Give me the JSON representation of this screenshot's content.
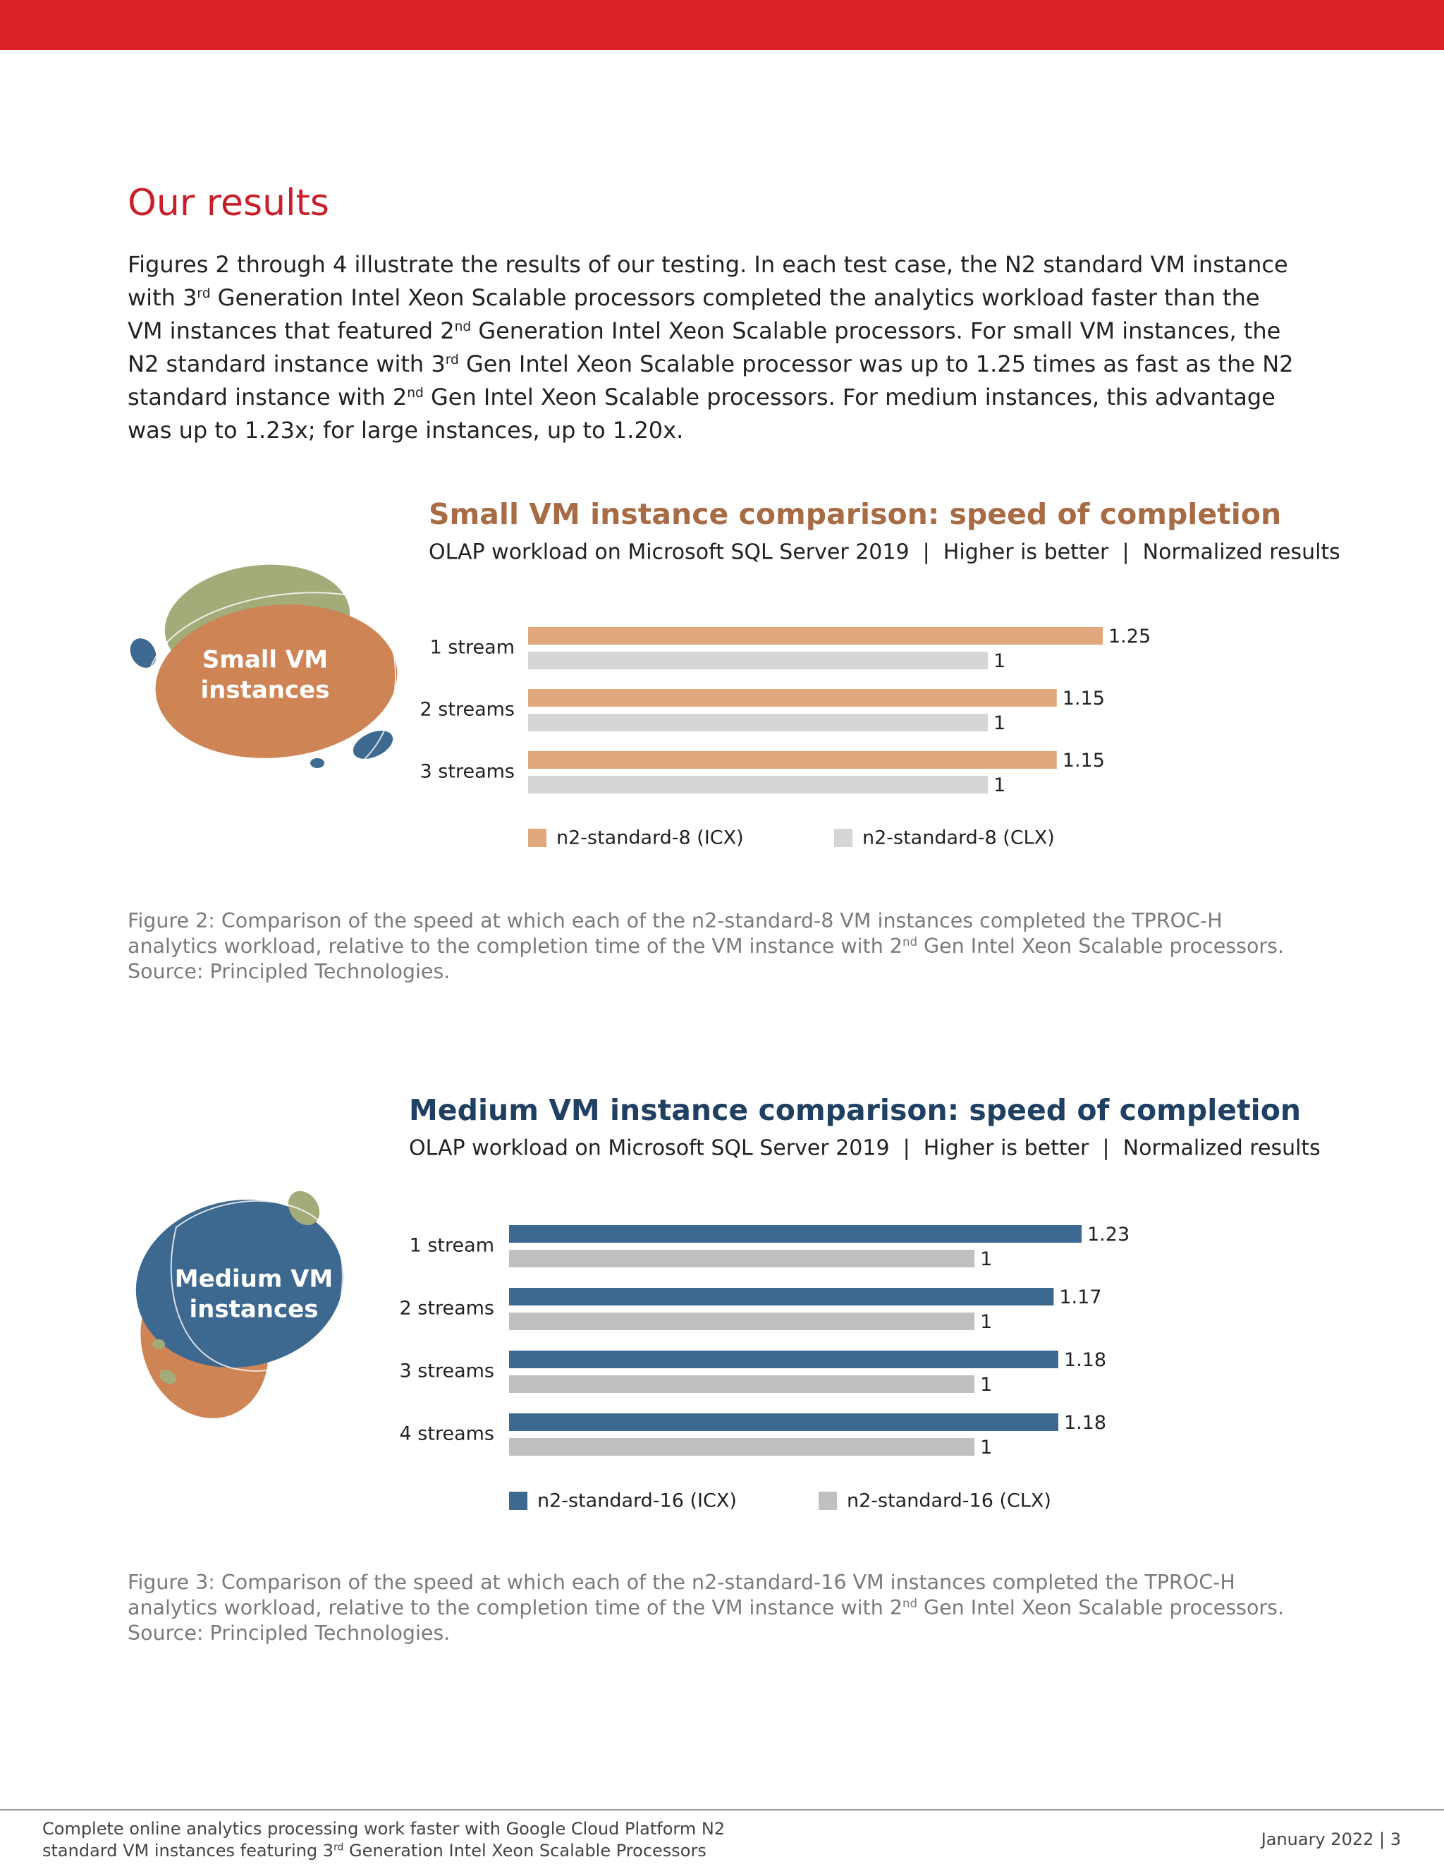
{
  "header": {
    "title": "Our results"
  },
  "body": {
    "runs": [
      {
        "text": "Figures 2 through 4 illustrate the results of our testing. In each test case, the N2 standard VM instance with 3"
      },
      {
        "sup": "rd"
      },
      {
        "text": " Generation Intel Xeon Scalable processors completed the analytics workload faster than the VM instances that featured 2"
      },
      {
        "sup": "nd"
      },
      {
        "text": " Generation Intel Xeon Scalable processors. For small VM instances, the N2 standard instance with 3"
      },
      {
        "sup": "rd"
      },
      {
        "text": " Gen Intel Xeon Scalable processor was up to 1.25 times as fast as the N2 standard instance with 2"
      },
      {
        "sup": "nd"
      },
      {
        "text": " Gen Intel Xeon Scalable processors. For medium instances, this advantage was up to 1.23x; for large instances, up to 1.20x."
      }
    ]
  },
  "chart_data": [
    {
      "type": "bar",
      "orientation": "horizontal",
      "title": "Small VM instance comparison: speed of completion",
      "subtitle": "OLAP workload on Microsoft SQL Server 2019  |  Higher is better  |  Normalized results",
      "title_color": "#a76c45",
      "badge": [
        "Small VM",
        "instances"
      ],
      "categories": [
        "1 stream",
        "2 streams",
        "3 streams"
      ],
      "series": [
        {
          "name": "n2-standard-8 (ICX)",
          "color": "#e0a87c",
          "values": [
            1.25,
            1.15,
            1.15
          ]
        },
        {
          "name": "n2-standard-8 (CLX)",
          "color": "#d5d6d7",
          "values": [
            1,
            1,
            1
          ]
        }
      ]
    },
    {
      "type": "bar",
      "orientation": "horizontal",
      "title": "Medium VM instance comparison: speed of completion",
      "subtitle": "OLAP workload on Microsoft SQL Server 2019  |  Higher is better  |  Normalized results",
      "title_color": "#1f3f63",
      "badge": [
        "Medium VM",
        "instances"
      ],
      "categories": [
        "1 stream",
        "2 streams",
        "3 streams",
        "4 streams"
      ],
      "series": [
        {
          "name": "n2-standard-16 (ICX)",
          "color": "#3d6890",
          "values": [
            1.23,
            1.17,
            1.18,
            1.18
          ]
        },
        {
          "name": "n2-standard-16 (CLX)",
          "color": "#c0c0c1",
          "values": [
            1,
            1,
            1,
            1
          ]
        }
      ]
    }
  ],
  "captions": [
    {
      "runs": [
        {
          "text": "Figure 2: Comparison of the speed at which each of the n2-standard-8 VM instances completed the TPROC-H analytics workload, relative to the completion time of the VM instance with 2"
        },
        {
          "sup": "nd"
        },
        {
          "text": " Gen Intel Xeon Scalable processors."
        }
      ],
      "source": "Source: Principled Technologies."
    },
    {
      "runs": [
        {
          "text": "Figure 3: Comparison of the speed at which each of the n2-standard-16 VM instances completed the TPROC-H analytics workload, relative to the completion time of the VM instance with 2"
        },
        {
          "sup": "nd"
        },
        {
          "text": " Gen Intel Xeon Scalable processors."
        }
      ],
      "source": "Source: Principled Technologies."
    }
  ],
  "footer": {
    "runs": [
      {
        "text": "Complete online analytics processing work faster with Google Cloud Platform N2 standard VM instances featuring 3"
      },
      {
        "sup": "rd"
      },
      {
        "text": " Generation Intel Xeon Scalable Processors"
      }
    ],
    "date_page": "January 2022 | 3"
  }
}
